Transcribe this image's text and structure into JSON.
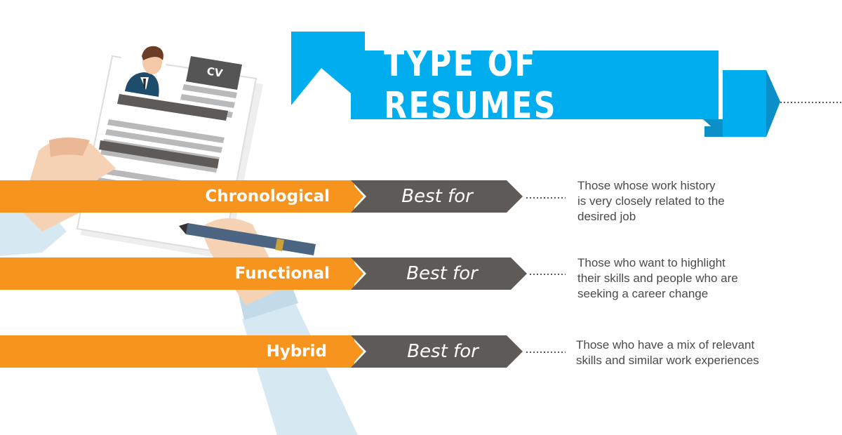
{
  "title": "TYPE OF RESUMES",
  "cv_label": "CV",
  "colors": {
    "banner_blue": "#00aeef",
    "banner_dark_blue": "#0b8fc8",
    "orange": "#f7941d",
    "dark_gray": "#5e5a58",
    "text_gray": "#4a4a4a"
  },
  "rows": [
    {
      "type": "Chronological",
      "best_for": "Best for",
      "description": "Those whose work history\nis very closely related to the\ndesired job"
    },
    {
      "type": "Functional",
      "best_for": "Best for",
      "description": "Those who want to highlight\ntheir skills and people who are\nseeking a career change"
    },
    {
      "type": "Hybrid",
      "best_for": "Best for",
      "description": "Those who have a mix of relevant\nskills and similar work experiences"
    }
  ]
}
